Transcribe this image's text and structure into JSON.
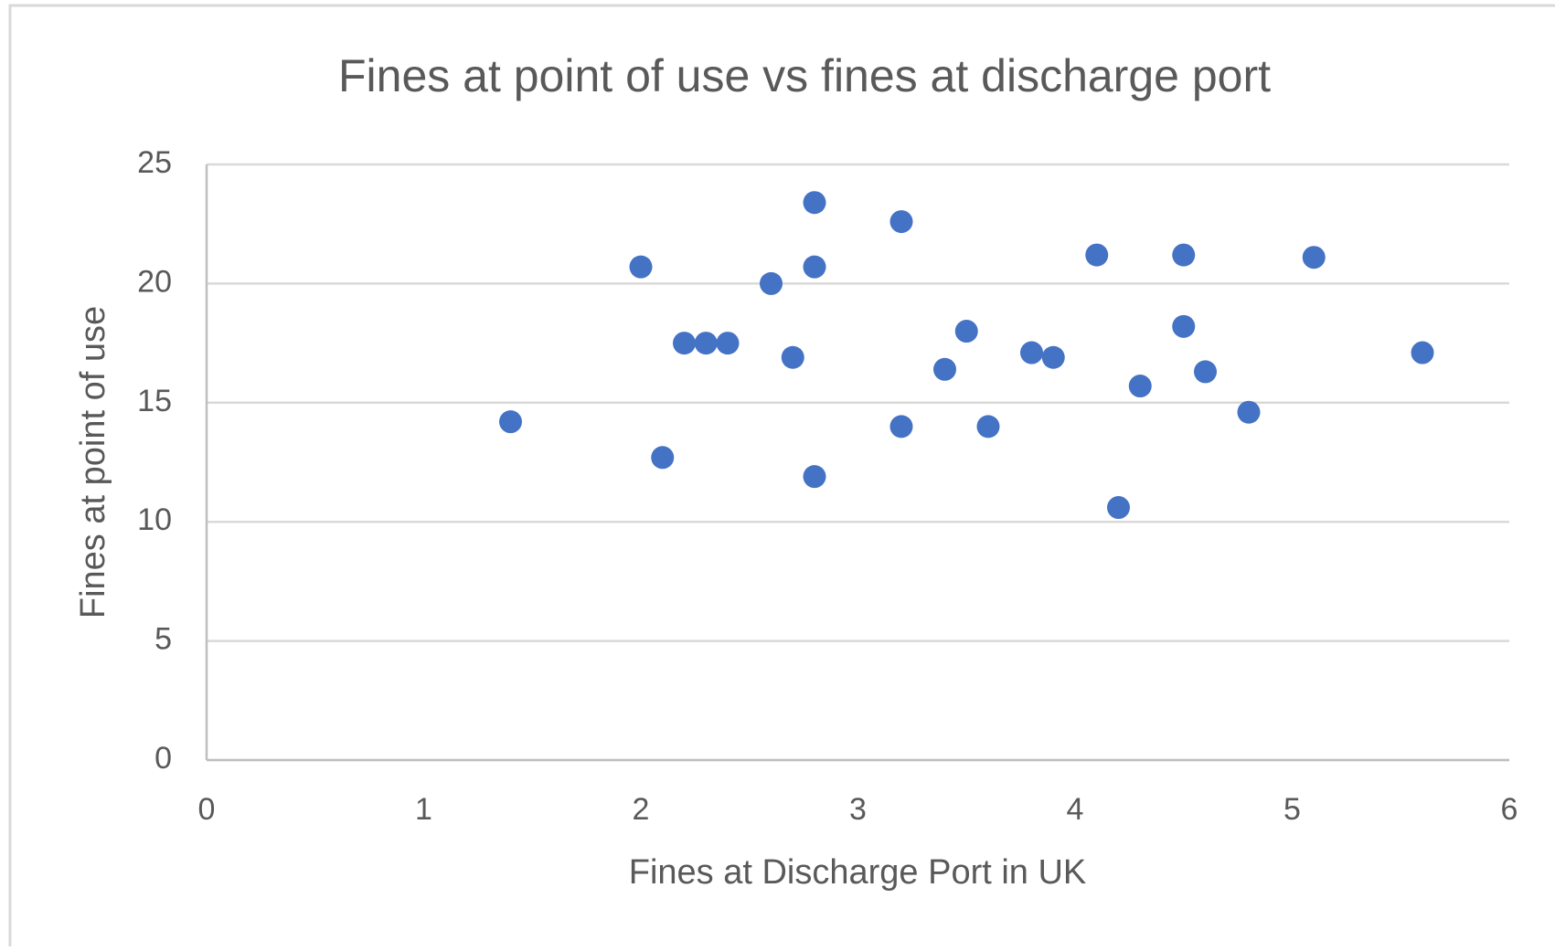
{
  "chart_data": {
    "type": "scatter",
    "title": "Fines at point of use vs fines at discharge port",
    "x_label": "Fines at Discharge Port in UK",
    "y_label": "Fines at point of use",
    "x": [
      1.4,
      2.0,
      2.1,
      2.2,
      2.3,
      2.4,
      2.6,
      2.7,
      2.8,
      2.8,
      2.8,
      3.2,
      3.2,
      3.4,
      3.5,
      3.6,
      3.8,
      3.9,
      4.1,
      4.2,
      4.3,
      4.5,
      4.5,
      4.6,
      4.8,
      5.1,
      5.6
    ],
    "values": [
      14.2,
      20.7,
      12.7,
      17.5,
      17.5,
      17.5,
      20.0,
      16.9,
      23.4,
      20.7,
      11.9,
      22.6,
      14.0,
      16.4,
      18.0,
      14.0,
      17.1,
      16.9,
      21.2,
      10.6,
      15.7,
      21.2,
      18.2,
      16.3,
      14.6,
      21.1,
      17.1
    ],
    "color": "#4472c4",
    "xlim": [
      0,
      6
    ],
    "xticks": [
      0,
      1,
      2,
      3,
      4,
      5,
      6
    ],
    "ylim": [
      0,
      25
    ],
    "yticks": [
      0,
      5,
      10,
      15,
      20,
      25
    ],
    "grid": true
  }
}
